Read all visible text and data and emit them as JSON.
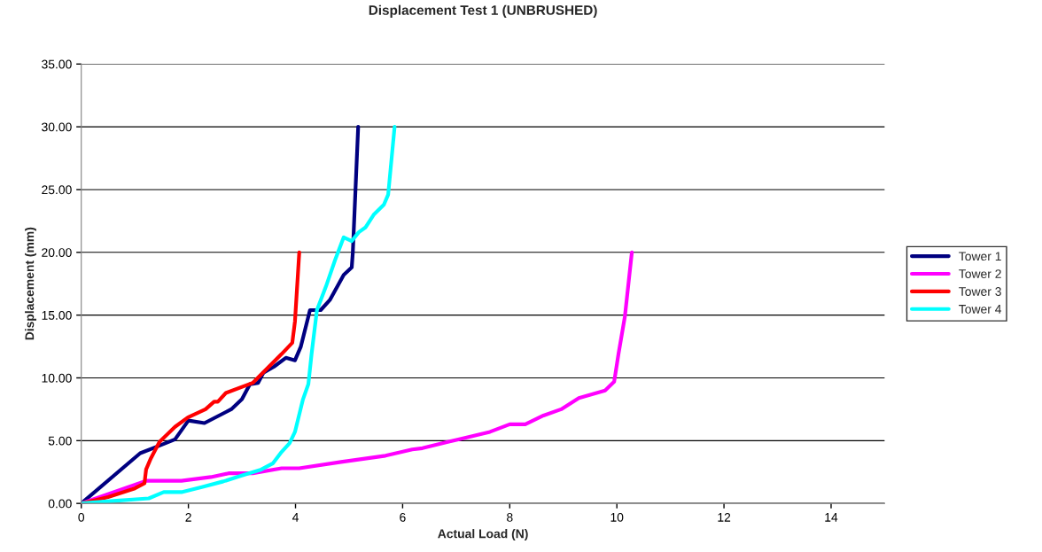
{
  "chart_data": {
    "type": "line",
    "title": "Displacement Test 1 (UNBRUSHED)",
    "xlabel": "Actual Load (N)",
    "ylabel": "Displacement (mm)",
    "xlim": [
      0,
      15
    ],
    "xticks": [
      0,
      2,
      4,
      6,
      8,
      10,
      12,
      14
    ],
    "ylim": [
      0,
      35
    ],
    "yticks": [
      {
        "value": 0,
        "label": "0.00"
      },
      {
        "value": 5,
        "label": "5.00"
      },
      {
        "value": 10,
        "label": "10.00"
      },
      {
        "value": 15,
        "label": "15.00"
      },
      {
        "value": 20,
        "label": "20.00"
      },
      {
        "value": 25,
        "label": "25.00"
      },
      {
        "value": 30,
        "label": "30.00"
      },
      {
        "value": 35,
        "label": "35.00"
      }
    ],
    "grid": "y",
    "legend": "right",
    "marker": "none",
    "line_style": "solid",
    "series": [
      {
        "name": "Tower 1",
        "color": "#000080",
        "x": [
          0,
          1.1,
          1.4,
          1.75,
          2.0,
          2.3,
          2.8,
          3.0,
          3.15,
          3.3,
          3.4,
          3.6,
          3.82,
          3.99,
          4.1,
          4.27,
          4.47,
          4.64,
          4.9,
          5.05,
          5.07,
          5.17
        ],
        "values": [
          0,
          4.0,
          4.5,
          5.1,
          6.6,
          6.4,
          7.5,
          8.3,
          9.5,
          9.6,
          10.4,
          10.9,
          11.6,
          11.4,
          12.5,
          15.4,
          15.4,
          16.2,
          18.2,
          18.8,
          20.0,
          30.0
        ]
      },
      {
        "name": "Tower 2",
        "color": "#ff00ff",
        "x": [
          0,
          1.21,
          1.54,
          1.87,
          2.42,
          2.75,
          3.2,
          3.74,
          4.07,
          4.85,
          5.68,
          6.18,
          6.37,
          7.04,
          7.63,
          8.0,
          8.29,
          8.63,
          8.96,
          9.29,
          9.78,
          9.95,
          10.03,
          10.15,
          10.28
        ],
        "values": [
          0,
          1.8,
          1.8,
          1.8,
          2.1,
          2.4,
          2.4,
          2.8,
          2.8,
          3.3,
          3.8,
          4.3,
          4.4,
          5.1,
          5.7,
          6.3,
          6.3,
          7.0,
          7.5,
          8.4,
          9.0,
          9.7,
          11.9,
          14.9,
          20.0
        ]
      },
      {
        "name": "Tower 3",
        "color": "#ff0000",
        "x": [
          0,
          0.5,
          1.0,
          1.18,
          1.21,
          1.3,
          1.46,
          1.75,
          1.99,
          2.32,
          2.48,
          2.55,
          2.7,
          3.2,
          3.74,
          3.94,
          3.99,
          4.07
        ],
        "values": [
          0,
          0.5,
          1.2,
          1.6,
          2.7,
          3.6,
          4.9,
          6.1,
          6.85,
          7.5,
          8.1,
          8.1,
          8.8,
          9.6,
          11.9,
          12.8,
          14.5,
          20.0
        ]
      },
      {
        "name": "Tower 4",
        "color": "#00ffff",
        "x": [
          0,
          0.6,
          1.26,
          1.54,
          1.87,
          2.25,
          2.65,
          2.98,
          3.36,
          3.58,
          3.74,
          3.89,
          3.99,
          4.14,
          4.24,
          4.3,
          4.4,
          4.57,
          4.74,
          4.9,
          5.05,
          5.18,
          5.31,
          5.46,
          5.65,
          5.73,
          5.85
        ],
        "values": [
          0,
          0.2,
          0.4,
          0.9,
          0.9,
          1.3,
          1.75,
          2.2,
          2.7,
          3.2,
          4.1,
          4.8,
          5.7,
          8.3,
          9.5,
          11.9,
          15.4,
          17.3,
          19.4,
          21.2,
          20.9,
          21.6,
          22.0,
          23.0,
          23.8,
          24.6,
          30.0
        ]
      }
    ]
  }
}
